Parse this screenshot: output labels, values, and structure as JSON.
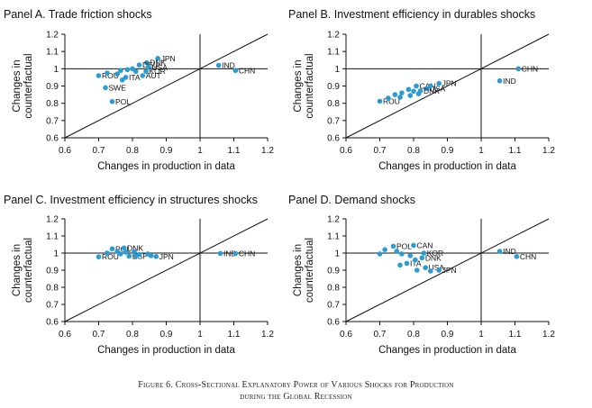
{
  "figure_caption": {
    "line1": "Figure 6. Cross-Sectional Explanatory Power of Various Shocks for Production",
    "line2": "during the Global Recession"
  },
  "colors": {
    "marker": "#2b9bd3",
    "axis": "#111111",
    "line": "#111111"
  },
  "chart_data": [
    {
      "type": "scatter",
      "title": "Panel A. Trade friction shocks",
      "xlabel": "Changes in production in data",
      "ylabel": [
        "Changes in",
        "counterfactual"
      ],
      "xlim": [
        0.6,
        1.2
      ],
      "ylim": [
        0.6,
        1.2
      ],
      "xticks": [
        0.6,
        0.7,
        0.8,
        0.9,
        1,
        1.1,
        1.2
      ],
      "yticks": [
        0.6,
        0.7,
        0.8,
        0.9,
        1,
        1.1,
        1.2
      ],
      "reference": {
        "vline": 1,
        "hline": 1,
        "diagonal": true
      },
      "points": [
        {
          "label": "JPN",
          "x": 0.875,
          "y": 1.06
        },
        {
          "label": "DNK",
          "x": 0.842,
          "y": 1.035
        },
        {
          "label": "DEU",
          "x": 0.82,
          "y": 1.022
        },
        {
          "label": "USA",
          "x": 0.848,
          "y": 1.008
        },
        {
          "label": "KOR",
          "x": 0.84,
          "y": 0.985
        },
        {
          "label": "AUT",
          "x": 0.83,
          "y": 0.96
        },
        {
          "label": "ITA",
          "x": 0.78,
          "y": 0.95
        },
        {
          "label": "ROU",
          "x": 0.7,
          "y": 0.96
        },
        {
          "label": "SWE",
          "x": 0.72,
          "y": 0.89
        },
        {
          "label": "POL",
          "x": 0.74,
          "y": 0.81
        },
        {
          "label": "IND",
          "x": 1.055,
          "y": 1.02
        },
        {
          "label": "CHN",
          "x": 1.105,
          "y": 0.99
        },
        {
          "label": "",
          "x": 0.725,
          "y": 0.975
        },
        {
          "label": "",
          "x": 0.755,
          "y": 0.97
        },
        {
          "label": "",
          "x": 0.765,
          "y": 0.99
        },
        {
          "label": "",
          "x": 0.785,
          "y": 0.995
        },
        {
          "label": "",
          "x": 0.8,
          "y": 1.0
        },
        {
          "label": "",
          "x": 0.81,
          "y": 0.985
        },
        {
          "label": "",
          "x": 0.77,
          "y": 0.935
        }
      ]
    },
    {
      "type": "scatter",
      "title": "Panel B. Investment efficiency in durables shocks",
      "xlabel": "Changes in production in data",
      "ylabel": [
        "Changes in",
        "counterfactual"
      ],
      "xlim": [
        0.6,
        1.2
      ],
      "ylim": [
        0.6,
        1.2
      ],
      "xticks": [
        0.6,
        0.7,
        0.8,
        0.9,
        1,
        1.1,
        1.2
      ],
      "yticks": [
        0.6,
        0.7,
        0.8,
        0.9,
        1,
        1.1,
        1.2
      ],
      "reference": {
        "vline": 1,
        "hline": 1,
        "diagonal": true
      },
      "points": [
        {
          "label": "CHN",
          "x": 1.11,
          "y": 1.0
        },
        {
          "label": "IND",
          "x": 1.055,
          "y": 0.93
        },
        {
          "label": "JPN",
          "x": 0.875,
          "y": 0.915
        },
        {
          "label": "CAN",
          "x": 0.808,
          "y": 0.9
        },
        {
          "label": "USA",
          "x": 0.838,
          "y": 0.885
        },
        {
          "label": "DNK",
          "x": 0.82,
          "y": 0.872
        },
        {
          "label": "ROU",
          "x": 0.7,
          "y": 0.812
        },
        {
          "label": "",
          "x": 0.725,
          "y": 0.83
        },
        {
          "label": "",
          "x": 0.745,
          "y": 0.85
        },
        {
          "label": "",
          "x": 0.765,
          "y": 0.86
        },
        {
          "label": "",
          "x": 0.785,
          "y": 0.88
        },
        {
          "label": "",
          "x": 0.8,
          "y": 0.87
        },
        {
          "label": "",
          "x": 0.815,
          "y": 0.855
        },
        {
          "label": "",
          "x": 0.85,
          "y": 0.9
        },
        {
          "label": "",
          "x": 0.76,
          "y": 0.835
        },
        {
          "label": "",
          "x": 0.79,
          "y": 0.845
        }
      ]
    },
    {
      "type": "scatter",
      "title": "Panel C. Investment efficiency in structures shocks",
      "xlabel": "Changes in production in data",
      "ylabel": [
        "Changes in",
        "counterfactual"
      ],
      "xlim": [
        0.6,
        1.2
      ],
      "ylim": [
        0.6,
        1.2
      ],
      "xticks": [
        0.6,
        0.7,
        0.8,
        0.9,
        1,
        1.1,
        1.2
      ],
      "yticks": [
        0.6,
        0.7,
        0.8,
        0.9,
        1,
        1.1,
        1.2
      ],
      "reference": {
        "vline": 1,
        "hline": 1,
        "diagonal": true
      },
      "points": [
        {
          "label": "POL",
          "x": 0.74,
          "y": 1.025
        },
        {
          "label": "DNK",
          "x": 0.775,
          "y": 1.03
        },
        {
          "label": "ROU",
          "x": 0.7,
          "y": 0.978
        },
        {
          "label": "ESP",
          "x": 0.79,
          "y": 0.982
        },
        {
          "label": "JPN",
          "x": 0.87,
          "y": 0.98
        },
        {
          "label": "IND",
          "x": 1.06,
          "y": 0.998
        },
        {
          "label": "CHN",
          "x": 1.105,
          "y": 0.998
        },
        {
          "label": "",
          "x": 0.725,
          "y": 1.0
        },
        {
          "label": "",
          "x": 0.755,
          "y": 1.01
        },
        {
          "label": "",
          "x": 0.765,
          "y": 0.995
        },
        {
          "label": "",
          "x": 0.805,
          "y": 1.008
        },
        {
          "label": "",
          "x": 0.82,
          "y": 0.992
        },
        {
          "label": "",
          "x": 0.845,
          "y": 0.995
        },
        {
          "label": "",
          "x": 0.855,
          "y": 0.985
        },
        {
          "label": "",
          "x": 0.81,
          "y": 0.982
        },
        {
          "label": "",
          "x": 0.78,
          "y": 1.005
        }
      ]
    },
    {
      "type": "scatter",
      "title": "Panel D. Demand shocks",
      "xlabel": "Changes in production in data",
      "ylabel": [
        "Changes in",
        "counterfactual"
      ],
      "xlim": [
        0.6,
        1.2
      ],
      "ylim": [
        0.6,
        1.2
      ],
      "xticks": [
        0.6,
        0.7,
        0.8,
        0.9,
        1,
        1.1,
        1.2
      ],
      "yticks": [
        0.6,
        0.7,
        0.8,
        0.9,
        1,
        1.1,
        1.2
      ],
      "reference": {
        "vline": 1,
        "hline": 1,
        "diagonal": true
      },
      "points": [
        {
          "label": "CAN",
          "x": 0.8,
          "y": 1.045
        },
        {
          "label": "POL",
          "x": 0.74,
          "y": 1.04
        },
        {
          "label": "KOR",
          "x": 0.83,
          "y": 1.0
        },
        {
          "label": "DNK",
          "x": 0.825,
          "y": 0.972
        },
        {
          "label": "ITA",
          "x": 0.78,
          "y": 0.94
        },
        {
          "label": "USA",
          "x": 0.835,
          "y": 0.915
        },
        {
          "label": "JPN",
          "x": 0.875,
          "y": 0.9
        },
        {
          "label": "IND",
          "x": 1.055,
          "y": 1.01
        },
        {
          "label": "CHN",
          "x": 1.105,
          "y": 0.98
        },
        {
          "label": "",
          "x": 0.7,
          "y": 0.995
        },
        {
          "label": "",
          "x": 0.715,
          "y": 1.02
        },
        {
          "label": "",
          "x": 0.75,
          "y": 1.01
        },
        {
          "label": "",
          "x": 0.765,
          "y": 0.995
        },
        {
          "label": "",
          "x": 0.79,
          "y": 0.985
        },
        {
          "label": "",
          "x": 0.805,
          "y": 0.96
        },
        {
          "label": "",
          "x": 0.76,
          "y": 0.93
        },
        {
          "label": "",
          "x": 0.81,
          "y": 0.9
        },
        {
          "label": "",
          "x": 0.85,
          "y": 0.895
        }
      ]
    }
  ]
}
